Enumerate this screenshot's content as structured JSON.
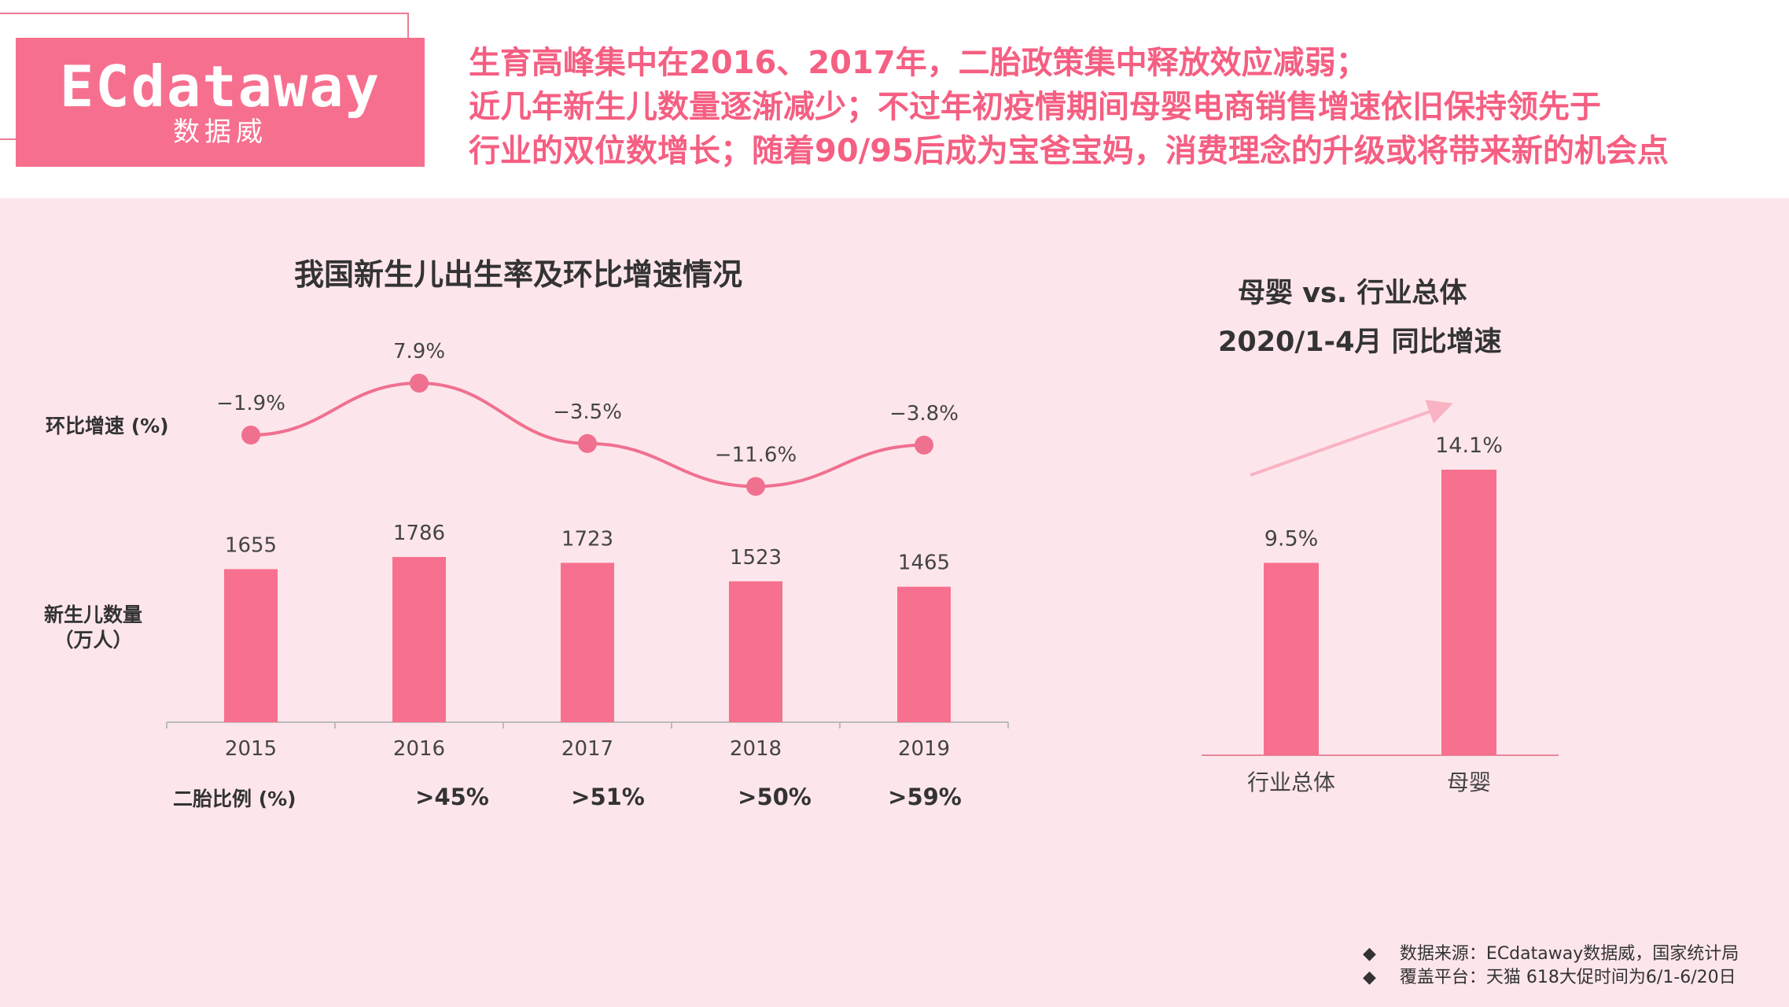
{
  "logo": {
    "main": "ECdataway",
    "sub": "数据威"
  },
  "headline": [
    "生育高峰集中在2016、2017年，二胎政策集中释放效应减弱；",
    "近几年新生儿数量逐渐减少；不过年初疫情期间母婴电商销售增速依旧保持领先于",
    "行业的双位数增长；随着90/95后成为宝爸宝妈，消费理念的升级或将带来新的机会点"
  ],
  "labels": {
    "growth": "环比增速 (%)",
    "births_line1": "新生儿数量",
    "births_line2": "（万人）",
    "ratio": "二胎比例 (%)"
  },
  "source": [
    "数据来源：ECdataway数据威，国家统计局",
    "覆盖平台：天猫  618大促时间为6/1-6/20日"
  ],
  "colors": {
    "accent": "#f76f8e",
    "bar": "#f7708f",
    "line": "#f0708f",
    "arrow": "#f9b3c3"
  },
  "chart_data": [
    {
      "type": "bar",
      "title": "我国新生儿出生率及环比增速情况",
      "categories": [
        "2015",
        "2016",
        "2017",
        "2018",
        "2019"
      ],
      "series": [
        {
          "name": "新生儿数量（万人）",
          "type": "bar",
          "values": [
            1655,
            1786,
            1723,
            1523,
            1465
          ],
          "labels": [
            "1655",
            "1786",
            "1723",
            "1523",
            "1465"
          ]
        },
        {
          "name": "环比增速 (%)",
          "type": "line",
          "values": [
            -1.9,
            7.9,
            -3.5,
            -11.6,
            -3.8
          ],
          "labels": [
            "−1.9%",
            "7.9%",
            "−3.5%",
            "−11.6%",
            "−3.8%"
          ]
        }
      ],
      "second_child_ratio": {
        "label": "二胎比例 (%)",
        "values": [
          "",
          ">45%",
          ">51%",
          ">50%",
          ">59%"
        ]
      }
    },
    {
      "type": "bar",
      "title": [
        "母婴 vs. 行业总体",
        "2020/1-4月 同比增速"
      ],
      "categories": [
        "行业总体",
        "母婴"
      ],
      "values": [
        9.5,
        14.1
      ],
      "labels": [
        "9.5%",
        "14.1%"
      ]
    }
  ]
}
